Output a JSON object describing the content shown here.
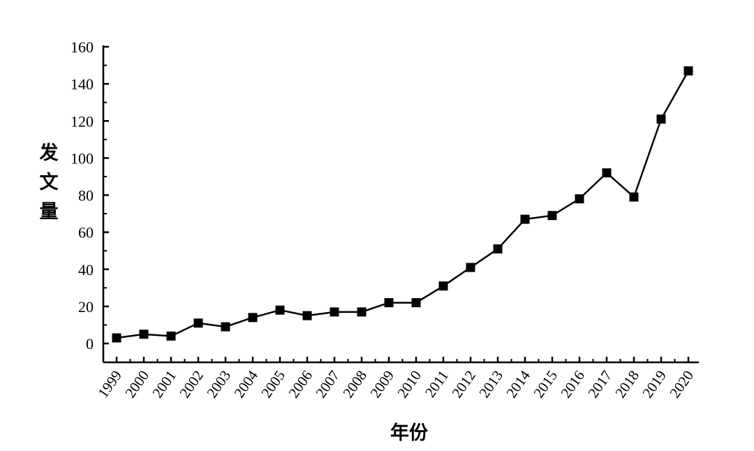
{
  "chart_data": {
    "type": "line",
    "title": "",
    "xlabel": "年份",
    "ylabel": "发文量",
    "ylim": [
      0,
      160
    ],
    "yticks": [
      0,
      20,
      40,
      60,
      80,
      100,
      120,
      140,
      160
    ],
    "grid": false,
    "legend": "none",
    "marker": "square",
    "line_color": "#000000",
    "categories": [
      "1999",
      "2000",
      "2001",
      "2002",
      "2003",
      "2004",
      "2005",
      "2006",
      "2007",
      "2008",
      "2009",
      "2010",
      "2011",
      "2012",
      "2013",
      "2014",
      "2015",
      "2016",
      "2017",
      "2018",
      "2019",
      "2020"
    ],
    "series": [
      {
        "values": [
          3,
          5,
          4,
          11,
          9,
          14,
          18,
          15,
          17,
          17,
          22,
          22,
          31,
          41,
          51,
          67,
          69,
          78,
          92,
          79,
          121,
          147
        ]
      }
    ]
  }
}
